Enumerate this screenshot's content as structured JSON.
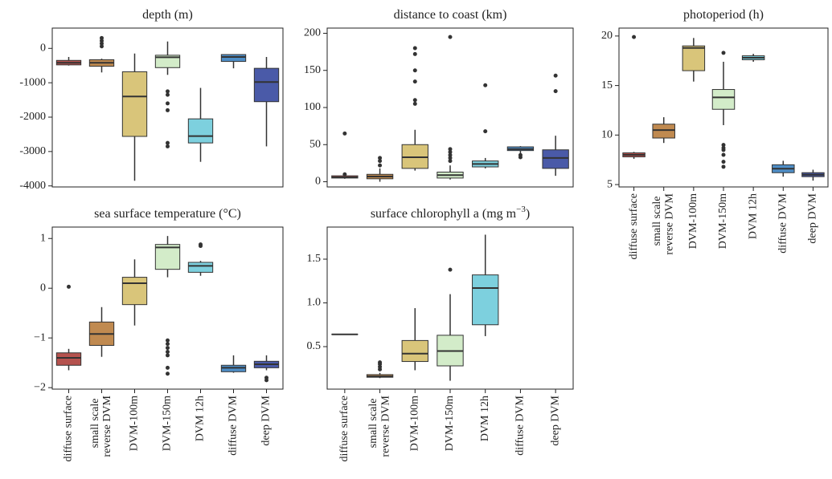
{
  "chart_data": [
    {
      "type": "box",
      "title": "depth (m)",
      "colors": [
        "#b5524e",
        "#c08a50",
        "#d9c57a",
        "#d3ecc9",
        "#7dd0de",
        "#4e8ec7",
        "#4a5aa8"
      ],
      "ylim": [
        -4030,
        590
      ],
      "yticks": [
        -4000,
        -3000,
        -2000,
        -1000,
        0
      ],
      "boxes": [
        {
          "whislo": -500,
          "q1": -480,
          "median": -420,
          "q3": -350,
          "whishi": -250,
          "fliers": []
        },
        {
          "whislo": -700,
          "q1": -520,
          "median": -420,
          "q3": -330,
          "whishi": -300,
          "fliers": [
            300,
            220,
            140,
            60
          ]
        },
        {
          "whislo": -3850,
          "q1": -2560,
          "median": -1400,
          "q3": -680,
          "whishi": -150,
          "fliers": []
        },
        {
          "whislo": -770,
          "q1": -560,
          "median": -260,
          "q3": -200,
          "whishi": 200,
          "fliers": [
            -1250,
            -1350,
            -1600,
            -1800,
            -2750,
            -2850
          ]
        },
        {
          "whislo": -3300,
          "q1": -2750,
          "median": -2550,
          "q3": -2050,
          "whishi": -1150,
          "fliers": []
        },
        {
          "whislo": -580,
          "q1": -380,
          "median": -250,
          "q3": -180,
          "whishi": -180,
          "fliers": []
        },
        {
          "whislo": -2850,
          "q1": -1550,
          "median": -980,
          "q3": -580,
          "whishi": -250,
          "fliers": []
        }
      ]
    },
    {
      "type": "box",
      "title": "distance to coast (km)",
      "colors": [
        "#b5524e",
        "#c08a50",
        "#d9c57a",
        "#d3ecc9",
        "#7dd0de",
        "#4e8ec7",
        "#4a5aa8"
      ],
      "ylim": [
        -7,
        207
      ],
      "yticks": [
        0,
        50,
        100,
        150,
        200
      ],
      "boxes": [
        {
          "whislo": 4,
          "q1": 5,
          "median": 6,
          "q3": 8,
          "whishi": 9,
          "fliers": [
            65,
            10
          ]
        },
        {
          "whislo": 0,
          "q1": 4,
          "median": 7,
          "q3": 10,
          "whishi": 18,
          "fliers": [
            32,
            28,
            22
          ]
        },
        {
          "whislo": 15,
          "q1": 18,
          "median": 33,
          "q3": 50,
          "whishi": 70,
          "fliers": [
            105,
            110,
            135,
            150,
            172,
            180
          ]
        },
        {
          "whislo": 3,
          "q1": 5,
          "median": 9,
          "q3": 13,
          "whishi": 22,
          "fliers": [
            28,
            32,
            36,
            40,
            44,
            195
          ]
        },
        {
          "whislo": 18,
          "q1": 20,
          "median": 24,
          "q3": 28,
          "whishi": 32,
          "fliers": [
            68,
            130
          ]
        },
        {
          "whislo": 38,
          "q1": 42,
          "median": 44,
          "q3": 47,
          "whishi": 48,
          "fliers": [
            33,
            36
          ]
        },
        {
          "whislo": 8,
          "q1": 18,
          "median": 32,
          "q3": 43,
          "whishi": 62,
          "fliers": [
            122,
            143
          ]
        }
      ]
    },
    {
      "type": "box",
      "title": "photoperiod (h)",
      "categories": [
        "diffuse surface",
        "small scale reverse DVM",
        "DVM-100m",
        "DVM-150m",
        "DVM 12h",
        "diffuse DVM",
        "deep DVM"
      ],
      "colors": [
        "#b5524e",
        "#c08a50",
        "#d9c57a",
        "#d3ecc9",
        "#7dd0de",
        "#4e8ec7",
        "#4a5aa8"
      ],
      "ylim": [
        4.76,
        20.8
      ],
      "yticks": [
        5,
        10,
        15,
        20
      ],
      "boxes": [
        {
          "whislo": 7.6,
          "q1": 7.8,
          "median": 8.0,
          "q3": 8.2,
          "whishi": 8.3,
          "fliers": [
            19.9
          ]
        },
        {
          "whislo": 9.2,
          "q1": 9.7,
          "median": 10.5,
          "q3": 11.1,
          "whishi": 11.8,
          "fliers": []
        },
        {
          "whislo": 15.4,
          "q1": 16.5,
          "median": 18.8,
          "q3": 19.0,
          "whishi": 19.8,
          "fliers": []
        },
        {
          "whislo": 11.0,
          "q1": 12.6,
          "median": 13.8,
          "q3": 14.6,
          "whishi": 17.4,
          "fliers": [
            18.3,
            9.0,
            8.7,
            8.5,
            8.0,
            7.3,
            6.8
          ]
        },
        {
          "whislo": 17.4,
          "q1": 17.6,
          "median": 17.8,
          "q3": 18.0,
          "whishi": 18.2,
          "fliers": []
        },
        {
          "whislo": 5.8,
          "q1": 6.2,
          "median": 6.6,
          "q3": 7.0,
          "whishi": 7.4,
          "fliers": []
        },
        {
          "whislo": 5.4,
          "q1": 5.8,
          "median": 6.0,
          "q3": 6.2,
          "whishi": 6.5,
          "fliers": []
        }
      ]
    },
    {
      "type": "box",
      "title": "sea surface temperature (°C)",
      "categories": [
        "diffuse surface",
        "small scale reverse DVM",
        "DVM-100m",
        "DVM-150m",
        "DVM 12h",
        "diffuse DVM",
        "deep DVM"
      ],
      "colors": [
        "#b5524e",
        "#c08a50",
        "#d9c57a",
        "#d3ecc9",
        "#7dd0de",
        "#4e8ec7",
        "#4a5aa8"
      ],
      "ylim": [
        -2.03,
        1.23
      ],
      "yticks": [
        {
          "value": -2,
          "label": "−2"
        },
        {
          "value": -1,
          "label": "−1"
        },
        0,
        1
      ],
      "boxes": [
        {
          "whislo": -1.65,
          "q1": -1.55,
          "median": -1.4,
          "q3": -1.3,
          "whishi": -1.22,
          "fliers": [
            0.03
          ]
        },
        {
          "whislo": -1.38,
          "q1": -1.15,
          "median": -0.92,
          "q3": -0.68,
          "whishi": -0.38,
          "fliers": []
        },
        {
          "whislo": -0.75,
          "q1": -0.33,
          "median": 0.1,
          "q3": 0.22,
          "whishi": 0.58,
          "fliers": []
        },
        {
          "whislo": 0.22,
          "q1": 0.38,
          "median": 0.82,
          "q3": 0.88,
          "whishi": 1.05,
          "fliers": [
            -1.05,
            -1.12,
            -1.2,
            -1.28,
            -1.35,
            -1.6,
            -1.72
          ]
        },
        {
          "whislo": 0.25,
          "q1": 0.32,
          "median": 0.45,
          "q3": 0.52,
          "whishi": 0.55,
          "fliers": [
            0.85,
            0.88
          ]
        },
        {
          "whislo": -1.7,
          "q1": -1.68,
          "median": -1.6,
          "q3": -1.55,
          "whishi": -1.35,
          "fliers": []
        },
        {
          "whislo": -1.65,
          "q1": -1.6,
          "median": -1.53,
          "q3": -1.47,
          "whishi": -1.35,
          "fliers": [
            -1.8,
            -1.85
          ]
        }
      ]
    },
    {
      "type": "box",
      "title": "surface chlorophyll a (mg m",
      "title_superscript": "−3",
      "title_end": ")",
      "categories": [
        "diffuse surface",
        "small scale reverse DVM",
        "DVM-100m",
        "DVM-150m",
        "DVM 12h",
        "diffuse DVM",
        "deep DVM"
      ],
      "colors": [
        "#b5524e",
        "#c08a50",
        "#d9c57a",
        "#d3ecc9",
        "#7dd0de",
        "#4e8ec7",
        "#4a5aa8"
      ],
      "ylim": [
        0.014,
        1.867
      ],
      "yticks": [
        0.5,
        {
          "value": 1,
          "label": "1.0"
        },
        1.5
      ],
      "boxes": [
        {
          "whislo": 0.64,
          "q1": 0.64,
          "median": 0.64,
          "q3": 0.64,
          "whishi": 0.64,
          "fliers": []
        },
        {
          "whislo": 0.14,
          "q1": 0.15,
          "median": 0.16,
          "q3": 0.18,
          "whishi": 0.2,
          "fliers": [
            0.24,
            0.27,
            0.3,
            0.32
          ]
        },
        {
          "whislo": 0.23,
          "q1": 0.33,
          "median": 0.42,
          "q3": 0.57,
          "whishi": 0.94,
          "fliers": []
        },
        {
          "whislo": 0.11,
          "q1": 0.28,
          "median": 0.45,
          "q3": 0.63,
          "whishi": 1.1,
          "fliers": [
            1.38
          ]
        },
        {
          "whislo": 0.62,
          "q1": 0.75,
          "median": 1.17,
          "q3": 1.32,
          "whishi": 1.78,
          "fliers": []
        },
        null,
        null
      ]
    }
  ]
}
